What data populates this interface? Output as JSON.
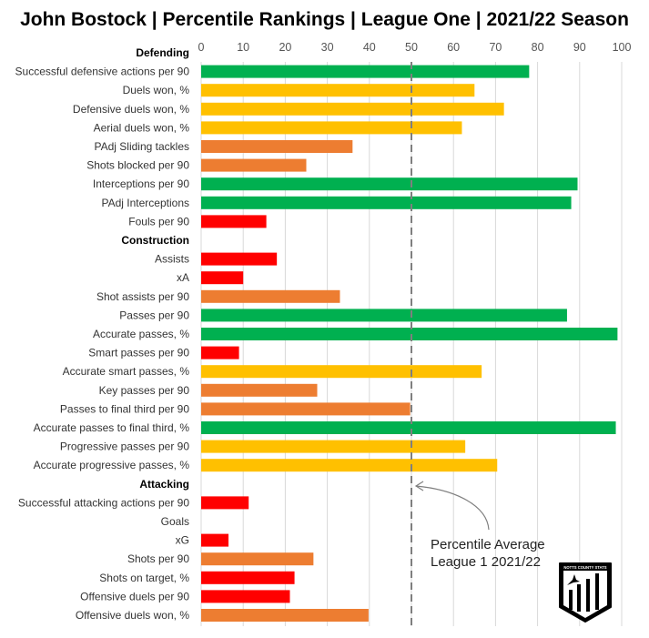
{
  "chart_data": {
    "type": "bar",
    "orientation": "horizontal",
    "title": "John Bostock | Percentile Rankings | League One | 2021/22 Season",
    "xlim": [
      0,
      100
    ],
    "xticks": [
      0,
      10,
      20,
      30,
      40,
      50,
      60,
      70,
      80,
      90,
      100
    ],
    "grid": true,
    "reference_line": {
      "value": 50,
      "label_line1": "Percentile Average",
      "label_line2": "League 1 2021/22"
    },
    "colors": {
      "green": "#00B050",
      "yellow": "#FFC000",
      "orange": "#ED7D31",
      "red": "#FF0000"
    },
    "logo_text": "NOTTS COUNTY STATS",
    "sections": [
      {
        "name": "Defending",
        "items": [
          {
            "label": "Successful defensive actions per 90",
            "value": 78,
            "color": "green"
          },
          {
            "label": "Duels won, %",
            "value": 65,
            "color": "yellow"
          },
          {
            "label": "Defensive duels won, %",
            "value": 72,
            "color": "yellow"
          },
          {
            "label": "Aerial duels won, %",
            "value": 62,
            "color": "yellow"
          },
          {
            "label": "PAdj Sliding tackles",
            "value": 36,
            "color": "orange"
          },
          {
            "label": "Shots blocked per 90",
            "value": 25,
            "color": "orange"
          },
          {
            "label": "Interceptions per 90",
            "value": 89.5,
            "color": "green"
          },
          {
            "label": "PAdj Interceptions",
            "value": 88,
            "color": "green"
          },
          {
            "label": "Fouls per 90",
            "value": 15.5,
            "color": "red"
          }
        ]
      },
      {
        "name": "Construction",
        "items": [
          {
            "label": "Assists",
            "value": 18,
            "color": "red"
          },
          {
            "label": "xA",
            "value": 10,
            "color": "red"
          },
          {
            "label": "Shot assists per 90",
            "value": 33,
            "color": "orange"
          },
          {
            "label": "Passes per 90",
            "value": 87,
            "color": "green"
          },
          {
            "label": "Accurate passes, %",
            "value": 99,
            "color": "green"
          },
          {
            "label": "Smart passes per 90",
            "value": 9,
            "color": "red"
          },
          {
            "label": "Accurate smart passes, %",
            "value": 66.7,
            "color": "yellow"
          },
          {
            "label": "Key passes per 90",
            "value": 27.6,
            "color": "orange"
          },
          {
            "label": "Passes to final third per 90",
            "value": 49.7,
            "color": "orange"
          },
          {
            "label": "Accurate passes to final third, %",
            "value": 98.6,
            "color": "green"
          },
          {
            "label": "Progressive passes per 90",
            "value": 62.8,
            "color": "yellow"
          },
          {
            "label": "Accurate progressive passes, %",
            "value": 70.4,
            "color": "yellow"
          }
        ]
      },
      {
        "name": "Attacking",
        "items": [
          {
            "label": "Successful attacking actions per 90",
            "value": 11.3,
            "color": "red"
          },
          {
            "label": "Goals",
            "value": 0,
            "color": "red"
          },
          {
            "label": "xG",
            "value": 6.5,
            "color": "red"
          },
          {
            "label": "Shots per 90",
            "value": 26.7,
            "color": "orange"
          },
          {
            "label": "Shots on target, %",
            "value": 22.2,
            "color": "red"
          },
          {
            "label": "Offensive duels per 90",
            "value": 21.1,
            "color": "red"
          },
          {
            "label": "Offensive duels won, %",
            "value": 39.8,
            "color": "orange"
          }
        ]
      }
    ]
  }
}
